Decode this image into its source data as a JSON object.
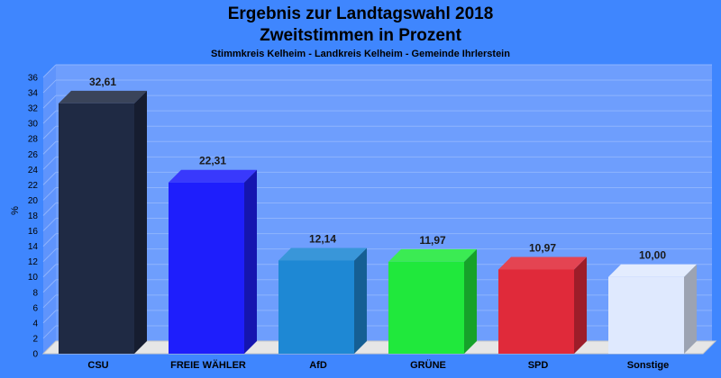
{
  "chart_data": {
    "type": "bar",
    "title": "Ergebnis zur Landtagswahl 2018",
    "subtitle": "Zweitstimmen in Prozent",
    "subsubtitle": "Stimmkreis Kelheim - Landkreis Kelheim - Gemeinde Ihrlerstein",
    "ylabel": "%",
    "xlabel": "",
    "ylim": [
      0,
      36
    ],
    "yticks": [
      0,
      2,
      4,
      6,
      8,
      10,
      12,
      14,
      16,
      18,
      20,
      22,
      24,
      26,
      28,
      30,
      32,
      34,
      36
    ],
    "grid": true,
    "categories": [
      "CSU",
      "FREIE WÄHLER",
      "AfD",
      "GRÜNE",
      "SPD",
      "Sonstige"
    ],
    "values": [
      32.61,
      22.31,
      12.14,
      11.97,
      10.97,
      10.0
    ],
    "value_labels": [
      "32,61",
      "22,31",
      "12,14",
      "11,97",
      "10,97",
      "10,00"
    ],
    "colors": [
      "#1f2a44",
      "#1e1efc",
      "#1e88d4",
      "#20e83c",
      "#e02a3a",
      "#dfe9fe"
    ]
  }
}
